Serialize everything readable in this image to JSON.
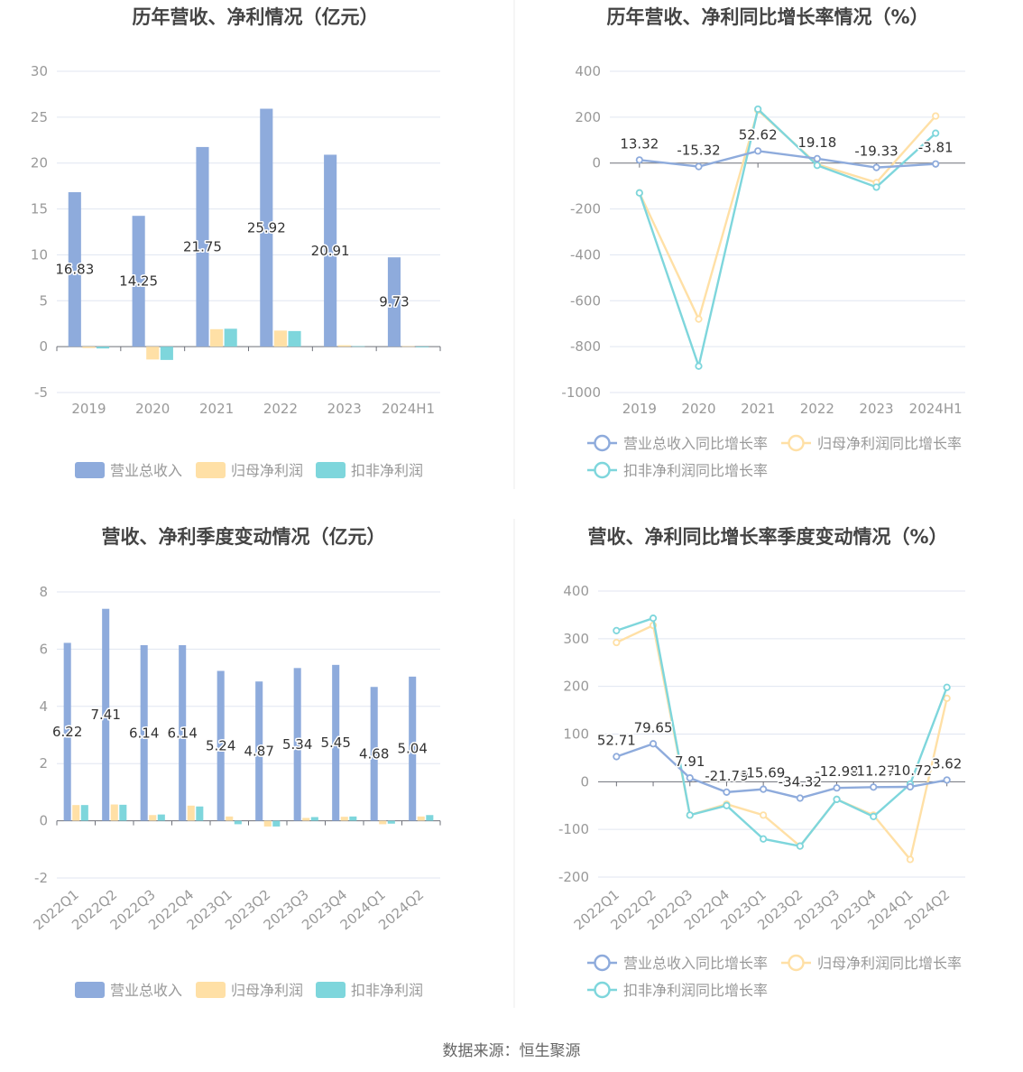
{
  "source_label": "数据来源：恒生聚源",
  "colors": {
    "revenue": "#8eabdc",
    "net_profit": "#ffe0a6",
    "deducted_profit": "#7ed6dc",
    "grid": "#e0e6f1",
    "axis": "#6e7079",
    "tick_text": "#999999",
    "title": "#444444",
    "label": "#333333"
  },
  "chart_data": [
    {
      "id": "annual-amount",
      "type": "bar",
      "title": "历年营收、净利情况（亿元）",
      "categories": [
        "2019",
        "2020",
        "2021",
        "2022",
        "2023",
        "2024H1"
      ],
      "ylim": [
        -5,
        30
      ],
      "yticks": [
        -5,
        0,
        5,
        10,
        15,
        20,
        25,
        30
      ],
      "series": [
        {
          "name": "营业总收入",
          "key": "revenue",
          "values": [
            16.83,
            14.25,
            21.75,
            25.92,
            20.91,
            9.73
          ],
          "labels": [
            "16.83",
            "14.25",
            "21.75",
            "25.92",
            "20.91",
            "9.73"
          ]
        },
        {
          "name": "归母净利润",
          "key": "net_profit",
          "values": [
            -0.15,
            -1.4,
            1.9,
            1.75,
            0.15,
            0.05
          ]
        },
        {
          "name": "扣非净利润",
          "key": "deducted_profit",
          "values": [
            -0.2,
            -1.45,
            1.95,
            1.7,
            0.05,
            -0.08
          ]
        }
      ]
    },
    {
      "id": "annual-growth",
      "type": "line",
      "title": "历年营收、净利同比增长率情况（%）",
      "categories": [
        "2019",
        "2020",
        "2021",
        "2022",
        "2023",
        "2024H1"
      ],
      "ylim": [
        -1000,
        400
      ],
      "yticks": [
        -1000,
        -800,
        -600,
        -400,
        -200,
        0,
        200,
        400
      ],
      "series": [
        {
          "name": "营业总收入同比增长率",
          "key": "revenue",
          "values": [
            13.32,
            -15.32,
            52.62,
            19.18,
            -19.33,
            -3.81
          ],
          "labels": [
            "13.32",
            "-15.32",
            "52.62",
            "19.18",
            "-19.33",
            "-3.81"
          ]
        },
        {
          "name": "归母净利润同比增长率",
          "key": "net_profit",
          "values": [
            -130,
            -680,
            230,
            -5,
            -85,
            205
          ]
        },
        {
          "name": "扣非净利润同比增长率",
          "key": "deducted_profit",
          "values": [
            -130,
            -885,
            235,
            -10,
            -105,
            130
          ]
        }
      ]
    },
    {
      "id": "quarter-amount",
      "type": "bar",
      "title": "营收、净利季度变动情况（亿元）",
      "categories": [
        "2022Q1",
        "2022Q2",
        "2022Q3",
        "2022Q4",
        "2023Q1",
        "2023Q2",
        "2023Q3",
        "2023Q4",
        "2024Q1",
        "2024Q2"
      ],
      "ylim": [
        -2,
        8
      ],
      "yticks": [
        -2,
        0,
        2,
        4,
        6,
        8
      ],
      "series": [
        {
          "name": "营业总收入",
          "key": "revenue",
          "values": [
            6.22,
            7.41,
            6.14,
            6.14,
            5.24,
            4.87,
            5.34,
            5.45,
            4.68,
            5.04
          ],
          "labels": [
            "6.22",
            "7.41",
            "6.14",
            "6.14",
            "5.24",
            "4.87",
            "5.34",
            "5.45",
            "4.68",
            "5.04"
          ]
        },
        {
          "name": "归母净利润",
          "key": "net_profit",
          "values": [
            0.55,
            0.57,
            0.2,
            0.53,
            0.15,
            -0.2,
            0.1,
            0.14,
            -0.12,
            0.15
          ]
        },
        {
          "name": "扣非净利润",
          "key": "deducted_profit",
          "values": [
            0.55,
            0.56,
            0.22,
            0.5,
            -0.12,
            -0.2,
            0.13,
            0.15,
            -0.1,
            0.2
          ]
        }
      ]
    },
    {
      "id": "quarter-growth",
      "type": "line",
      "title": "营收、净利同比增长率季度变动情况（%）",
      "categories": [
        "2022Q1",
        "2022Q2",
        "2022Q3",
        "2022Q4",
        "2023Q1",
        "2023Q2",
        "2023Q3",
        "2023Q4",
        "2024Q1",
        "2024Q2"
      ],
      "ylim": [
        -200,
        400
      ],
      "yticks": [
        -200,
        -100,
        0,
        100,
        200,
        300,
        400
      ],
      "series": [
        {
          "name": "营业总收入同比增长率",
          "key": "revenue",
          "values": [
            52.71,
            79.65,
            7.91,
            -21.79,
            -15.69,
            -34.32,
            -12.98,
            -11.27,
            -10.72,
            3.62
          ],
          "labels": [
            "52.71",
            "79.65",
            "7.91",
            "-21.79",
            "-15.69",
            "-34.32",
            "-12.98",
            "-11.27",
            "-10.72",
            "3.62"
          ]
        },
        {
          "name": "归母净利润同比增长率",
          "key": "net_profit",
          "values": [
            292,
            328,
            -70,
            -47,
            -70,
            -135,
            -37,
            -70,
            -163,
            175
          ]
        },
        {
          "name": "扣非净利润同比增长率",
          "key": "deducted_profit",
          "values": [
            317,
            343,
            -70,
            -50,
            -120,
            -135,
            -37,
            -73,
            -5,
            198
          ]
        }
      ]
    }
  ]
}
